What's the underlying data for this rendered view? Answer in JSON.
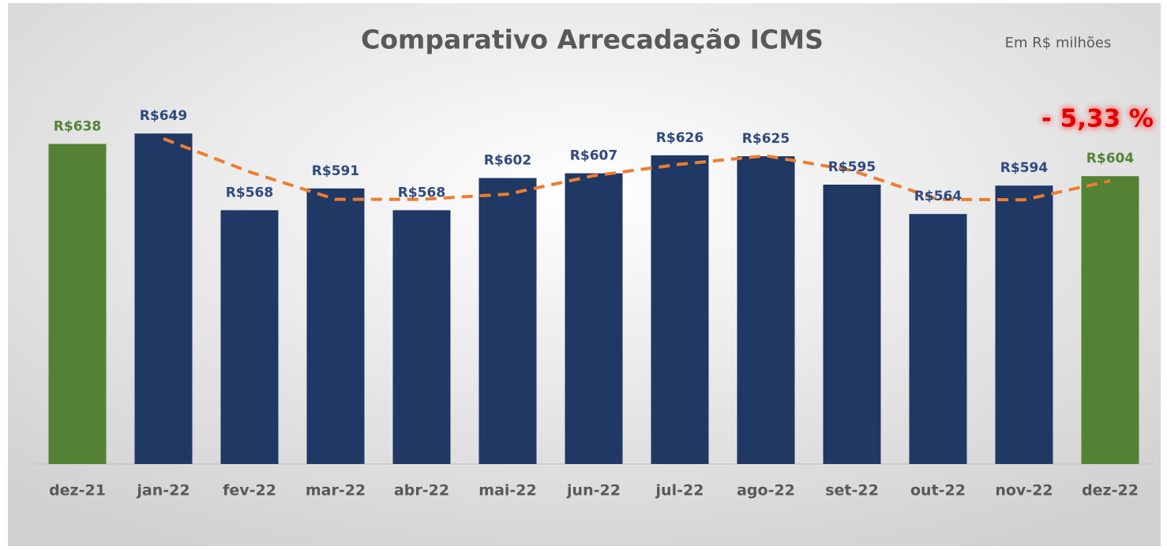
{
  "chart_data": {
    "type": "bar",
    "title": "Comparativo Arrecadação ICMS",
    "subtitle": "Em R$ milhões",
    "annotation": {
      "value": -5.33,
      "label": "- 5,33 %",
      "color": "#e00000"
    },
    "categories": [
      "dez-21",
      "jan-22",
      "fev-22",
      "mar-22",
      "abr-22",
      "mai-22",
      "jun-22",
      "jul-22",
      "ago-22",
      "set-22",
      "out-22",
      "nov-22",
      "dez-22"
    ],
    "values": [
      638,
      649,
      568,
      591,
      568,
      602,
      607,
      626,
      625,
      595,
      564,
      594,
      604
    ],
    "value_labels": [
      "R$638",
      "R$649",
      "R$568",
      "R$591",
      "R$568",
      "R$602",
      "R$607",
      "R$626",
      "R$625",
      "R$595",
      "R$564",
      "R$594",
      "R$604"
    ],
    "colors": [
      "#548235",
      "#1f3864",
      "#1f3864",
      "#1f3864",
      "#1f3864",
      "#1f3864",
      "#1f3864",
      "#1f3864",
      "#1f3864",
      "#1f3864",
      "#1f3864",
      "#1f3864",
      "#548235"
    ],
    "label_colors": [
      "#548235",
      "#2f4a80",
      "#2f4a80",
      "#2f4a80",
      "#2f4a80",
      "#2f4a80",
      "#2f4a80",
      "#2f4a80",
      "#2f4a80",
      "#2f4a80",
      "#2f4a80",
      "#2f4a80",
      "#548235"
    ],
    "trendline_color": "#ed7d31",
    "ylim": [
      300,
      700
    ]
  }
}
